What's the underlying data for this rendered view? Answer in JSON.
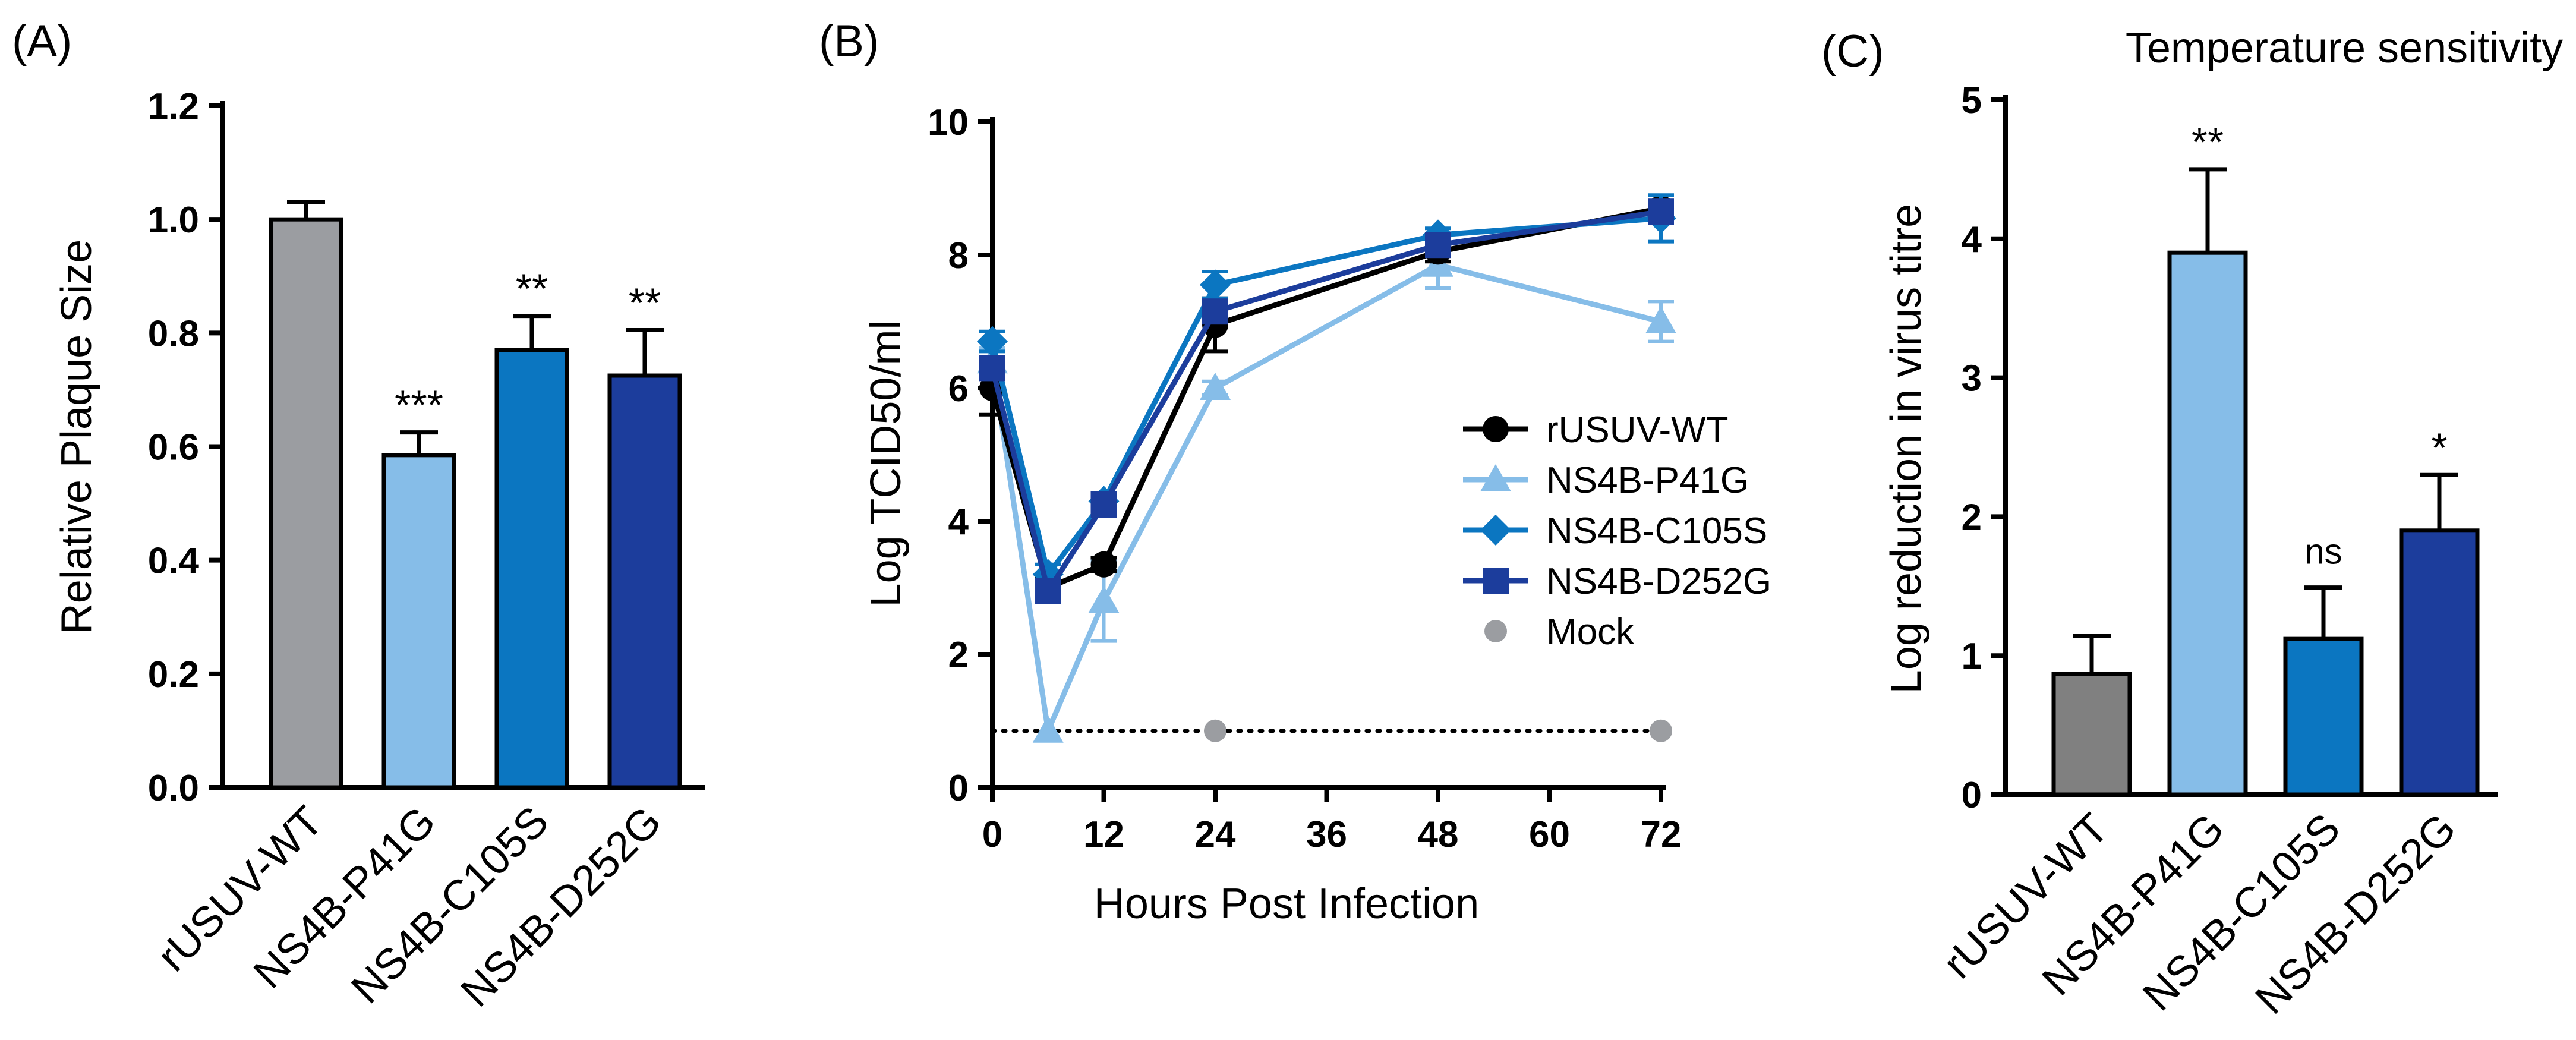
{
  "chart_data": [
    {
      "panel_label": "(A)",
      "type": "bar",
      "title": "",
      "xlabel": "",
      "ylabel": "Relative Plaque Size",
      "ylim": [
        0,
        1.2
      ],
      "yticks": [
        "0.0",
        "0.2",
        "0.4",
        "0.6",
        "0.8",
        "1.0",
        "1.2"
      ],
      "categories": [
        "rUSUV-WT",
        "NS4B-P41G",
        "NS4B-C105S",
        "NS4B-D252G"
      ],
      "values": [
        1.0,
        0.585,
        0.77,
        0.725
      ],
      "errors": [
        0.03,
        0.04,
        0.06,
        0.08
      ],
      "significance": [
        "",
        "***",
        "**",
        "**"
      ],
      "colors": [
        "#9b9da1",
        "#86bde8",
        "#0b76c1",
        "#1c3d9c"
      ]
    },
    {
      "panel_label": "(B)",
      "type": "line",
      "title": "",
      "xlabel": "Hours Post Infection",
      "ylabel": "Log TCID50/ml",
      "xlim": [
        0,
        72
      ],
      "ylim": [
        0,
        10
      ],
      "xticks": [
        "0",
        "12",
        "24",
        "36",
        "48",
        "60",
        "72"
      ],
      "yticks": [
        "0",
        "2",
        "4",
        "6",
        "8",
        "10"
      ],
      "x": [
        0,
        6,
        12,
        24,
        48,
        72
      ],
      "series": [
        {
          "name": "rUSUV-WT",
          "color": "#000000",
          "marker": "circle",
          "values": [
            6.0,
            3.0,
            3.35,
            6.95,
            8.05,
            8.7
          ],
          "errors": [
            0.4,
            0.15,
            0.1,
            0.4,
            0.15,
            0.1
          ]
        },
        {
          "name": "NS4B-P41G",
          "color": "#86bde8",
          "marker": "triangle",
          "values": [
            6.4,
            0.85,
            2.8,
            6.0,
            7.85,
            7.0
          ],
          "errors": [
            0.2,
            0.0,
            0.6,
            0.1,
            0.35,
            0.3
          ]
        },
        {
          "name": "NS4B-C105S",
          "color": "#0b76c1",
          "marker": "diamond",
          "values": [
            6.7,
            3.2,
            4.3,
            7.55,
            8.3,
            8.55
          ],
          "errors": [
            0.15,
            0.15,
            0.1,
            0.2,
            0.1,
            0.35
          ]
        },
        {
          "name": "NS4B-D252G",
          "color": "#1c3d9c",
          "marker": "square",
          "values": [
            6.3,
            2.95,
            4.25,
            7.15,
            8.15,
            8.65
          ],
          "errors": [
            0.15,
            0.15,
            0.1,
            0.15,
            0.1,
            0.1
          ]
        }
      ],
      "mock": {
        "name": "Mock",
        "color": "#9b9da1",
        "x": [
          24,
          72
        ],
        "level": 0.85
      }
    },
    {
      "panel_label": "(C)",
      "type": "bar",
      "title": "Temperature sensitivity",
      "xlabel": "",
      "ylabel": "Log reduction in virus titre",
      "ylim": [
        0,
        5
      ],
      "yticks": [
        "0",
        "1",
        "2",
        "3",
        "4",
        "5"
      ],
      "categories": [
        "rUSUV-WT",
        "NS4B-P41G",
        "NS4B-C105S",
        "NS4B-D252G"
      ],
      "values": [
        0.87,
        3.9,
        1.12,
        1.9
      ],
      "errors": [
        0.27,
        0.6,
        0.37,
        0.4
      ],
      "significance": [
        "",
        "**",
        "ns",
        "*"
      ],
      "colors": [
        "#808080",
        "#86bde8",
        "#0b76c1",
        "#1c3d9c"
      ]
    }
  ]
}
